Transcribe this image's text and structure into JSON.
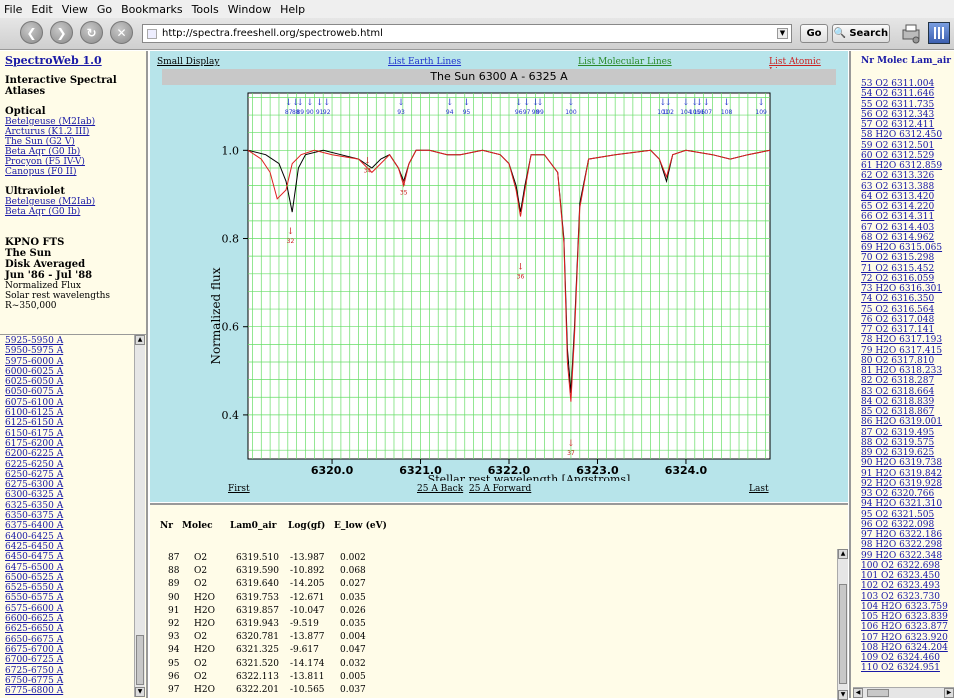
{
  "menu": [
    "File",
    "Edit",
    "View",
    "Go",
    "Bookmarks",
    "Tools",
    "Window",
    "Help"
  ],
  "toolbar": {
    "url": "http://spectra.freeshell.org/spectroweb.html",
    "go_label": "Go",
    "search_label": "Search"
  },
  "sidebar": {
    "title": "SpectroWeb 1.0",
    "subtitle": "Interactive Spectral Atlases",
    "optical_header": "Optical",
    "optical_links": [
      "Betelgeuse (M2Iab)",
      "Arcturus (K1.2 III)",
      "The Sun (G2 V)",
      "Beta Aqr (G0 Ib)",
      "Procyon (F5 IV-V)",
      "Canopus (F0 II)"
    ],
    "uv_header": "Ultraviolet",
    "uv_links": [
      "Betelgeuse (M2Iab)",
      "Beta Aqr (G0 Ib)"
    ],
    "info_bold": [
      "KPNO FTS",
      "The Sun",
      "Disk Averaged",
      "Jun '86 - Jul '88"
    ],
    "info_plain": [
      "Normalized Flux",
      "Solar rest wavelengths",
      "R~350,000"
    ]
  },
  "ranges": [
    "5925-5950 A",
    "5950-5975 A",
    "5975-6000 A",
    "6000-6025 A",
    "6025-6050 A",
    "6050-6075 A",
    "6075-6100 A",
    "6100-6125 A",
    "6125-6150 A",
    "6150-6175 A",
    "6175-6200 A",
    "6200-6225 A",
    "6225-6250 A",
    "6250-6275 A",
    "6275-6300 A",
    "6300-6325 A",
    "6325-6350 A",
    "6350-6375 A",
    "6375-6400 A",
    "6400-6425 A",
    "6425-6450 A",
    "6450-6475 A",
    "6475-6500 A",
    "6500-6525 A",
    "6525-6550 A",
    "6550-6575 A",
    "6575-6600 A",
    "6600-6625 A",
    "6625-6650 A",
    "6650-6675 A",
    "6675-6700 A",
    "6700-6725 A",
    "6725-6750 A",
    "6750-6775 A",
    "6775-6800 A"
  ],
  "plot": {
    "links": {
      "small": "Small Display",
      "earth": "List Earth Lines",
      "molecular": "List Molecular Lines",
      "atomic": "List Atomic Lines"
    },
    "title": "The Sun 6300 A - 6325 A",
    "nav": {
      "first": "First",
      "back": "25 A Back",
      "forward": "25 A Forward",
      "last": "Last"
    }
  },
  "colors": {
    "observed": "#000000",
    "synthetic": "#e02020",
    "grid": "#66dd66",
    "earth_link": "#2233cc",
    "molec_link": "#2a8a2a",
    "atomic_link": "#cc2222",
    "mol_marker": "#2233cc",
    "atomic_marker": "#cc2222"
  },
  "chart_data": {
    "type": "line",
    "title": "The Sun 6300 A - 6325 A",
    "xlabel": "Stellar rest wavelength [Angstroms]",
    "ylabel": "Normalized flux",
    "xlim": [
      6319.05,
      6324.95
    ],
    "ylim": [
      0.3,
      1.13
    ],
    "xticks": [
      "6320.0",
      "6321.0",
      "6322.0",
      "6323.0",
      "6324.0"
    ],
    "yticks": [
      "0.4",
      "0.6",
      "0.8",
      "1.0"
    ],
    "grid": true,
    "series": [
      {
        "role": "observed",
        "x": [
          6319.05,
          6319.25,
          6319.4,
          6319.48,
          6319.55,
          6319.62,
          6319.7,
          6319.9,
          6320.1,
          6320.3,
          6320.45,
          6320.55,
          6320.65,
          6320.75,
          6320.81,
          6320.87,
          6320.95,
          6321.1,
          6321.3,
          6321.45,
          6321.7,
          6321.9,
          6322.0,
          6322.08,
          6322.13,
          6322.18,
          6322.25,
          6322.4,
          6322.55,
          6322.62,
          6322.66,
          6322.7,
          6322.74,
          6322.8,
          6322.9,
          6323.2,
          6323.6,
          6323.7,
          6323.78,
          6323.85,
          6324.0,
          6324.3,
          6324.5,
          6324.7,
          6324.95
        ],
        "y": [
          1.0,
          0.99,
          0.97,
          0.93,
          0.86,
          0.96,
          0.99,
          1.0,
          0.99,
          0.98,
          0.96,
          0.98,
          0.99,
          0.96,
          0.93,
          0.97,
          1.0,
          1.0,
          0.99,
          0.99,
          1.0,
          0.99,
          0.97,
          0.92,
          0.86,
          0.92,
          0.99,
          0.99,
          0.95,
          0.8,
          0.55,
          0.45,
          0.6,
          0.88,
          0.98,
          0.99,
          1.0,
          0.98,
          0.93,
          0.99,
          1.0,
          0.99,
          0.98,
          0.99,
          1.0
        ]
      },
      {
        "role": "synthetic",
        "x": [
          6319.05,
          6319.2,
          6319.3,
          6319.38,
          6319.48,
          6319.55,
          6319.65,
          6319.8,
          6320.0,
          6320.3,
          6320.45,
          6320.55,
          6320.65,
          6320.75,
          6320.81,
          6320.87,
          6320.95,
          6321.1,
          6321.3,
          6321.45,
          6321.7,
          6321.9,
          6322.0,
          6322.08,
          6322.13,
          6322.18,
          6322.25,
          6322.4,
          6322.55,
          6322.62,
          6322.66,
          6322.7,
          6322.74,
          6322.8,
          6322.9,
          6323.2,
          6323.6,
          6323.7,
          6323.78,
          6323.85,
          6324.0,
          6324.3,
          6324.5,
          6324.7,
          6324.95
        ],
        "y": [
          1.0,
          0.98,
          0.95,
          0.89,
          0.91,
          0.97,
          0.99,
          1.0,
          0.99,
          0.98,
          0.95,
          0.97,
          0.99,
          0.96,
          0.92,
          0.97,
          1.0,
          1.0,
          0.99,
          0.99,
          1.0,
          0.99,
          0.97,
          0.91,
          0.85,
          0.91,
          0.99,
          0.99,
          0.95,
          0.79,
          0.52,
          0.43,
          0.58,
          0.87,
          0.98,
          0.99,
          1.0,
          0.98,
          0.94,
          0.99,
          1.0,
          0.99,
          0.98,
          0.99,
          1.0
        ]
      }
    ],
    "molecular_markers": [
      {
        "x": 6319.51,
        "label": "87"
      },
      {
        "x": 6319.59,
        "label": "88"
      },
      {
        "x": 6319.64,
        "label": "89"
      },
      {
        "x": 6319.75,
        "label": "90"
      },
      {
        "x": 6319.86,
        "label": "91"
      },
      {
        "x": 6319.94,
        "label": "92"
      },
      {
        "x": 6320.78,
        "label": "93"
      },
      {
        "x": 6321.33,
        "label": "94"
      },
      {
        "x": 6321.52,
        "label": "95"
      },
      {
        "x": 6322.11,
        "label": "96"
      },
      {
        "x": 6322.2,
        "label": "97"
      },
      {
        "x": 6322.3,
        "label": "98"
      },
      {
        "x": 6322.35,
        "label": "99"
      },
      {
        "x": 6322.7,
        "label": "100"
      },
      {
        "x": 6323.74,
        "label": "101"
      },
      {
        "x": 6323.8,
        "label": "102"
      },
      {
        "x": 6324.0,
        "label": "104"
      },
      {
        "x": 6324.1,
        "label": "105"
      },
      {
        "x": 6324.15,
        "label": "106"
      },
      {
        "x": 6324.23,
        "label": "107"
      },
      {
        "x": 6324.46,
        "label": "108"
      },
      {
        "x": 6324.85,
        "label": "109"
      }
    ],
    "atomic_markers": [
      {
        "x": 6319.53,
        "y": 0.81,
        "label": "32"
      },
      {
        "x": 6320.4,
        "y": 0.97,
        "label": "34"
      },
      {
        "x": 6320.81,
        "y": 0.92,
        "label": "35"
      },
      {
        "x": 6322.13,
        "y": 0.73,
        "label": "36"
      },
      {
        "x": 6322.7,
        "y": 0.33,
        "label": "37"
      }
    ]
  },
  "lines_table": {
    "headers": [
      "Nr",
      "Molec",
      "Lam0_air",
      "Log(gf)",
      "E_low (eV)"
    ],
    "rows": [
      [
        "87",
        "O2",
        "6319.510",
        "-13.987",
        "0.002"
      ],
      [
        "88",
        "O2",
        "6319.590",
        "-10.892",
        "0.068"
      ],
      [
        "89",
        "O2",
        "6319.640",
        "-14.205",
        "0.027"
      ],
      [
        "90",
        "H2O",
        "6319.753",
        "-12.671",
        "0.035"
      ],
      [
        "91",
        "H2O",
        "6319.857",
        "-10.047",
        "0.026"
      ],
      [
        "92",
        "H2O",
        "6319.943",
        "-9.519",
        "0.035"
      ],
      [
        "93",
        "O2",
        "6320.781",
        "-13.877",
        "0.004"
      ],
      [
        "94",
        "H2O",
        "6321.325",
        "-9.617",
        "0.047"
      ],
      [
        "95",
        "O2",
        "6321.520",
        "-14.174",
        "0.032"
      ],
      [
        "96",
        "O2",
        "6322.113",
        "-13.811",
        "0.005"
      ],
      [
        "97",
        "H2O",
        "6322.201",
        "-10.565",
        "0.037"
      ]
    ]
  },
  "right_pane": {
    "header": "Nr Molec Lam_air",
    "items": [
      "53 O2 6311.004",
      "54 O2 6311.646",
      "55 O2 6311.735",
      "56 O2 6312.343",
      "57 O2 6312.411",
      "58 H2O 6312.450",
      "59 O2 6312.501",
      "60 O2 6312.529",
      "61 H2O 6312.859",
      "62 O2 6313.326",
      "63 O2 6313.388",
      "64 O2 6313.420",
      "65 O2 6314.220",
      "66 O2 6314.311",
      "67 O2 6314.403",
      "68 O2 6314.962",
      "69 H2O 6315.065",
      "70 O2 6315.298",
      "71 O2 6315.452",
      "72 O2 6316.059",
      "73 H2O 6316.301",
      "74 O2 6316.350",
      "75 O2 6316.564",
      "76 O2 6317.048",
      "77 O2 6317.141",
      "78 H2O 6317.193",
      "79 H2O 6317.415",
      "80 O2 6317.810",
      "81 H2O 6318.233",
      "82 O2 6318.287",
      "83 O2 6318.664",
      "84 O2 6318.839",
      "85 O2 6318.867",
      "86 H2O 6319.001",
      "87 O2 6319.495",
      "88 O2 6319.575",
      "89 O2 6319.625",
      "90 H2O 6319.738",
      "91 H2O 6319.842",
      "92 H2O 6319.928",
      "93 O2 6320.766",
      "94 H2O 6321.310",
      "95 O2 6321.505",
      "96 O2 6322.098",
      "97 H2O 6322.186",
      "98 H2O 6322.298",
      "99 H2O 6322.348",
      "100 O2 6322.698",
      "101 O2 6323.450",
      "102 O2 6323.493",
      "103 O2 6323.730",
      "104 H2O 6323.759",
      "105 H2O 6323.839",
      "106 H2O 6323.877",
      "107 H2O 6323.920",
      "108 H2O 6324.204",
      "109 O2 6324.460",
      "110 O2 6324.951"
    ]
  }
}
